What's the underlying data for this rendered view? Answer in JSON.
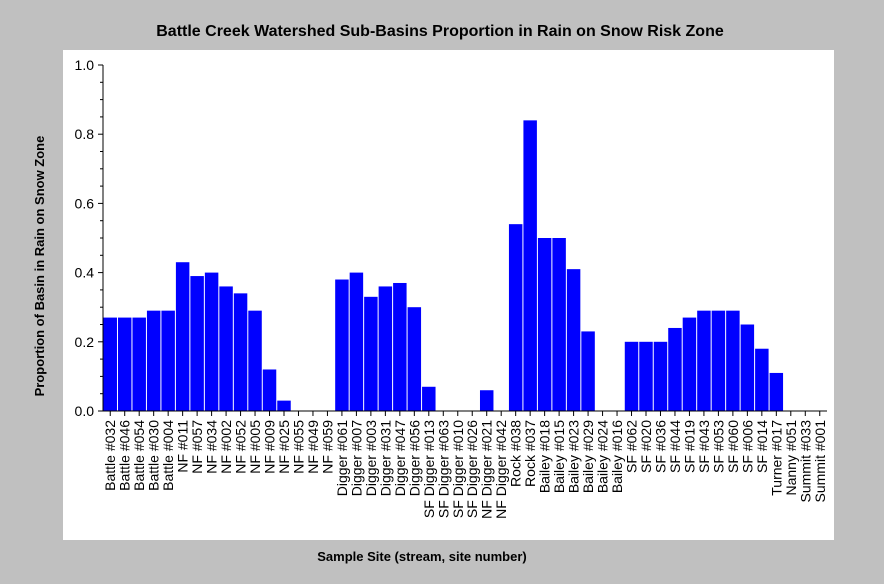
{
  "chart_data": {
    "type": "bar",
    "title": "Battle Creek Watershed Sub-Basins Proportion in Rain on Snow Risk Zone",
    "xlabel": "Sample Site (stream, site number)",
    "ylabel": "Proportion of Basin in Rain on Snow Zone",
    "ylim": [
      0.0,
      1.0
    ],
    "yticks": [
      "0.0",
      "0.2",
      "0.4",
      "0.6",
      "0.8",
      "1.0"
    ],
    "grid": false,
    "bar_color": "#0000ff",
    "background_color": "#c0c0c0",
    "plot_background_color": "#ffffff",
    "categories": [
      "Battle #032",
      "Battle #046",
      "Battle #054",
      "Battle #030",
      "Battle #004",
      "NF #011",
      "NF #057",
      "NF #034",
      "NF #002",
      "NF #052",
      "NF #005",
      "NF #009",
      "NF #025",
      "NF #055",
      "NF #049",
      "NF #059",
      "Digger #061",
      "Digger #007",
      "Digger #003",
      "Digger #031",
      "Digger #047",
      "Digger #056",
      "SF Digger #013",
      "SF Digger #063",
      "SF Digger #010",
      "SF Digger #026",
      "NF Digger #021",
      "NF Digger #042",
      "Rock #038",
      "Rock #037",
      "Bailey #018",
      "Bailey #015",
      "Bailey #023",
      "Bailey #029",
      "Bailey #024",
      "Bailey #016",
      "SF #062",
      "SF #020",
      "SF #036",
      "SF #044",
      "SF #019",
      "SF #043",
      "SF #053",
      "SF #060",
      "SF #006",
      "SF #014",
      "Turner #017",
      "Nanny #051",
      "Summit #033",
      "Summit #001"
    ],
    "values": [
      0.27,
      0.27,
      0.27,
      0.29,
      0.29,
      0.43,
      0.39,
      0.4,
      0.36,
      0.34,
      0.29,
      0.12,
      0.03,
      0.0,
      0.0,
      0.0,
      0.38,
      0.4,
      0.33,
      0.36,
      0.37,
      0.3,
      0.07,
      0.0,
      0.0,
      0.0,
      0.06,
      0.0,
      0.54,
      0.84,
      0.5,
      0.5,
      0.41,
      0.23,
      0.0,
      0.0,
      0.2,
      0.2,
      0.2,
      0.24,
      0.27,
      0.29,
      0.29,
      0.29,
      0.25,
      0.18,
      0.11,
      0.0,
      0.0,
      0.0
    ]
  }
}
